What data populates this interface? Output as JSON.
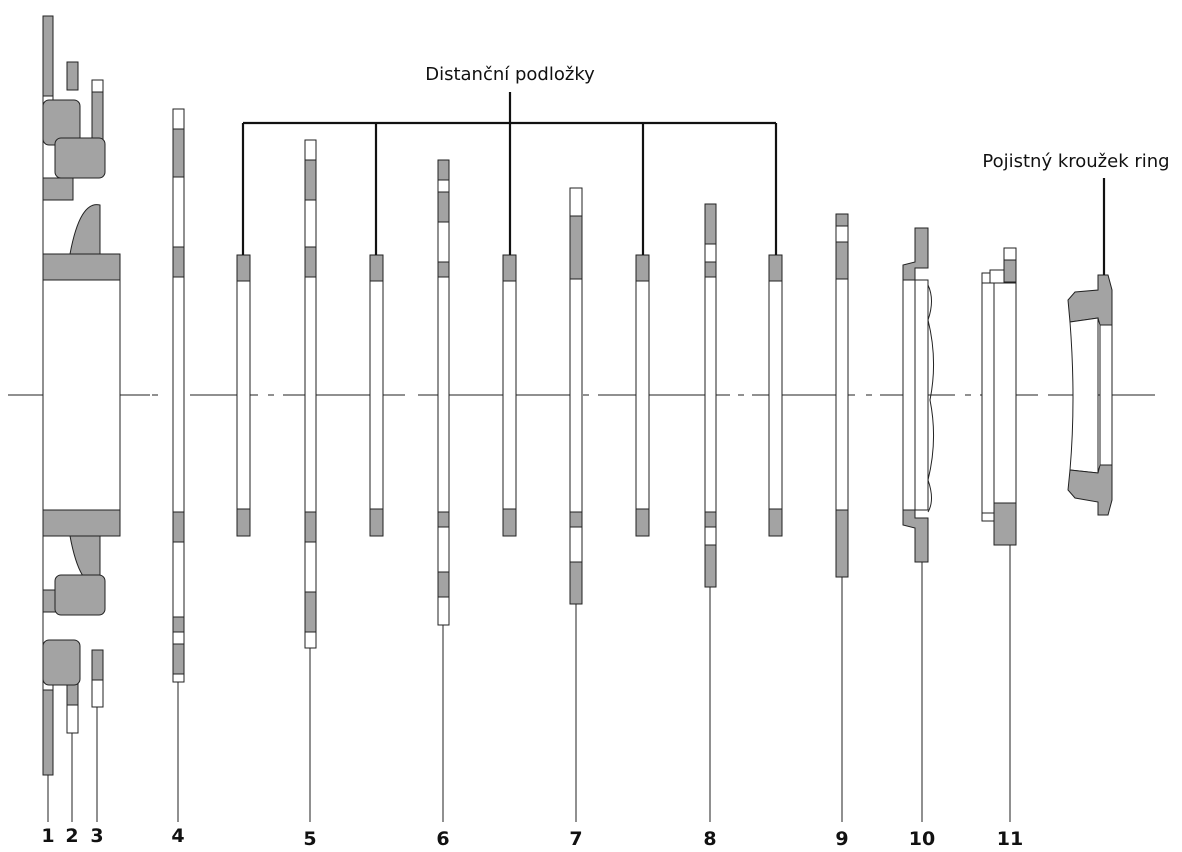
{
  "annotations": {
    "spacers_label": "Distanční podložky",
    "lockring_label": "Pojistný kroužek ring"
  },
  "part_numbers": [
    "1",
    "2",
    "3",
    "4",
    "5",
    "6",
    "7",
    "8",
    "9",
    "10",
    "11"
  ],
  "colors": {
    "fill": "#a3a3a3",
    "stroke": "#222222",
    "background": "#ffffff"
  }
}
